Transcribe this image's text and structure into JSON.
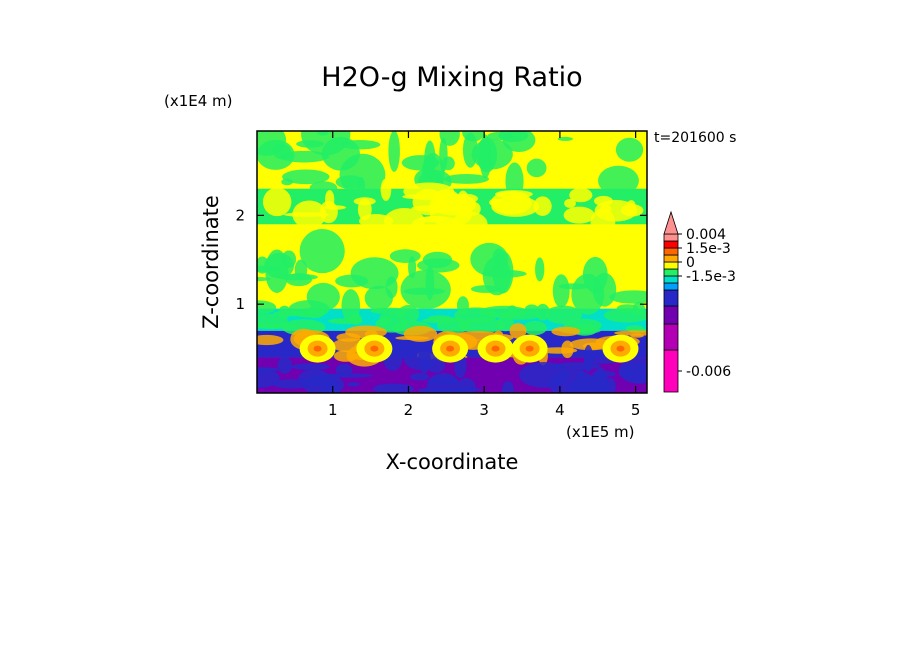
{
  "chart_data": {
    "type": "heatmap",
    "title": "H2O-g Mixing Ratio",
    "xlabel": "X-coordinate",
    "ylabel": "Z-coordinate",
    "x_unit": "(x1E5 m)",
    "y_unit": "(x1E4 m)",
    "time_label": "t=201600 s",
    "xlim": [
      0,
      5.15
    ],
    "ylim": [
      0,
      2.95
    ],
    "x_ticks": [
      "1",
      "2",
      "3",
      "4",
      "5"
    ],
    "y_ticks": [
      "1",
      "2"
    ],
    "colorbar": {
      "labels": [
        "0.004",
        "1.5e-3",
        "0",
        "-1.5e-3",
        "-0.006"
      ],
      "colors": [
        "#ff00bb",
        "#b400b4",
        "#7000b0",
        "#2828c8",
        "#00a0ff",
        "#00e0c8",
        "#22ee66",
        "#ffff00",
        "#ffaa00",
        "#ff6600",
        "#ff0000",
        "#ff9090"
      ]
    },
    "bands": [
      {
        "z_range": [
          2.3,
          2.95
        ],
        "dominant": "#ffff00",
        "secondary": "#22ee66"
      },
      {
        "z_range": [
          1.9,
          2.3
        ],
        "dominant": "#22ee66",
        "secondary": "#ffff00"
      },
      {
        "z_range": [
          0.95,
          1.6
        ],
        "dominant": "#ffff00",
        "secondary": "#22ee66"
      },
      {
        "z_range": [
          0.7,
          0.95
        ],
        "dominant": "#00e0c8",
        "secondary": "#22ee66"
      },
      {
        "z_range": [
          0.4,
          0.7
        ],
        "dominant": "#2828c8",
        "secondary": "#ffaa00"
      },
      {
        "z_range": [
          0,
          0.4
        ],
        "dominant": "#7000b0",
        "secondary": "#2828c8"
      }
    ]
  }
}
